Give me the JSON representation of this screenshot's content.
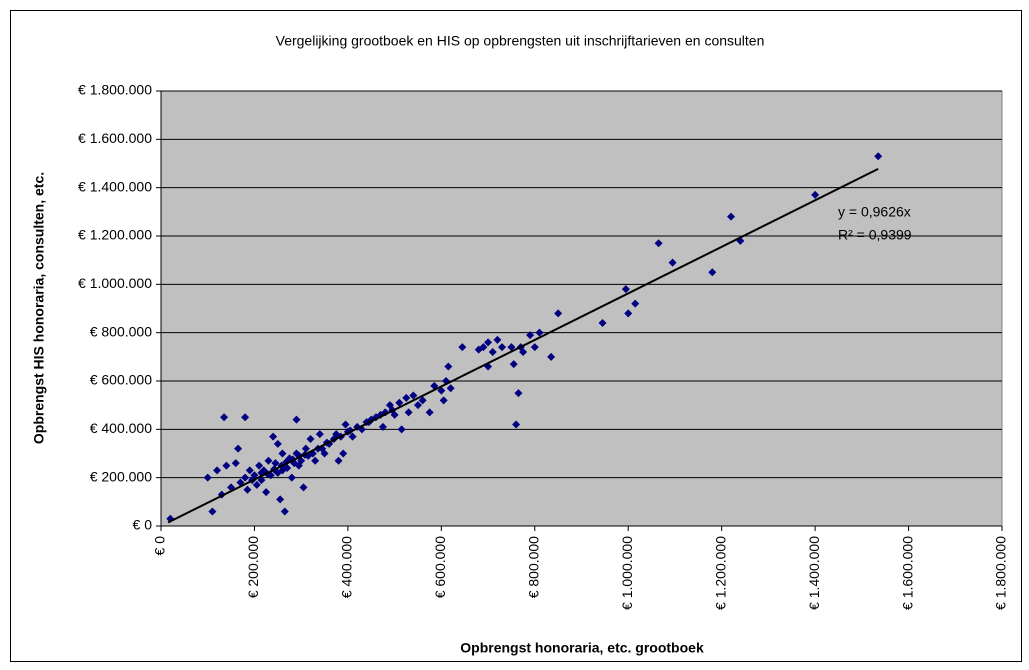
{
  "chart_data": {
    "type": "scatter",
    "title": "Vergelijking grootboek en HIS op opbrengsten uit inschrijftarieven en consulten",
    "x_label": "Opbrengst honoraria, etc. grootboek",
    "y_label": "Opbrengst HIS honoraria, consulten, etc.",
    "x": [
      20000,
      100000,
      110000,
      120000,
      130000,
      135000,
      140000,
      150000,
      160000,
      165000,
      170000,
      180000,
      180000,
      185000,
      190000,
      200000,
      205000,
      210000,
      215000,
      220000,
      225000,
      230000,
      235000,
      240000,
      245000,
      250000,
      250000,
      255000,
      260000,
      260000,
      265000,
      270000,
      275000,
      280000,
      285000,
      290000,
      290000,
      295000,
      300000,
      305000,
      310000,
      315000,
      320000,
      325000,
      330000,
      340000,
      345000,
      350000,
      360000,
      370000,
      375000,
      380000,
      390000,
      395000,
      400000,
      410000,
      420000,
      430000,
      440000,
      450000,
      460000,
      470000,
      475000,
      480000,
      490000,
      495000,
      500000,
      510000,
      515000,
      525000,
      530000,
      540000,
      550000,
      560000,
      575000,
      585000,
      600000,
      605000,
      610000,
      615000,
      620000,
      645000,
      680000,
      690000,
      700000,
      700000,
      710000,
      720000,
      730000,
      750000,
      755000,
      760000,
      765000,
      770000,
      775000,
      790000,
      800000,
      810000,
      835000,
      850000,
      945000,
      995000,
      1000000,
      1015000,
      1065000,
      1095000,
      1180000,
      1220000,
      1240000,
      1400000,
      1535000,
      195000,
      215000,
      228000,
      242000,
      258000,
      268000,
      282000,
      296000,
      308000,
      336000,
      355000,
      385000,
      405000,
      445000
    ],
    "series": [
      {
        "name": "Opbrengst HIS",
        "color": "#000080",
        "values": [
          30000,
          200000,
          60000,
          230000,
          130000,
          450000,
          250000,
          160000,
          260000,
          320000,
          180000,
          450000,
          200000,
          150000,
          230000,
          210000,
          170000,
          250000,
          190000,
          230000,
          140000,
          270000,
          210000,
          370000,
          260000,
          340000,
          220000,
          110000,
          300000,
          230000,
          60000,
          240000,
          280000,
          200000,
          260000,
          440000,
          300000,
          250000,
          270000,
          160000,
          320000,
          290000,
          360000,
          300000,
          270000,
          380000,
          320000,
          300000,
          340000,
          360000,
          380000,
          270000,
          300000,
          420000,
          390000,
          370000,
          410000,
          400000,
          430000,
          440000,
          450000,
          460000,
          410000,
          470000,
          500000,
          480000,
          460000,
          510000,
          400000,
          530000,
          470000,
          540000,
          500000,
          520000,
          470000,
          580000,
          560000,
          520000,
          600000,
          660000,
          570000,
          740000,
          730000,
          740000,
          660000,
          760000,
          720000,
          770000,
          740000,
          740000,
          670000,
          420000,
          550000,
          740000,
          720000,
          790000,
          740000,
          800000,
          700000,
          880000,
          840000,
          980000,
          880000,
          920000,
          1170000,
          1090000,
          1050000,
          1280000,
          1180000,
          1370000,
          1530000,
          190000,
          220000,
          215000,
          235000,
          250000,
          265000,
          275000,
          290000,
          295000,
          320000,
          345000,
          370000,
          395000,
          430000
        ]
      }
    ],
    "trendline": {
      "slope": 0.9626,
      "x": [
        15000,
        1535000
      ],
      "label": "y = 0,9626x",
      "r2_label": "R² = 0,9399"
    },
    "xlim": [
      0,
      1800000
    ],
    "ylim": [
      0,
      1800000
    ],
    "xticks": [
      {
        "value": 0,
        "label": "€ 0"
      },
      {
        "value": 200000,
        "label": "€ 200.000"
      },
      {
        "value": 400000,
        "label": "€ 400.000"
      },
      {
        "value": 600000,
        "label": "€ 600.000"
      },
      {
        "value": 800000,
        "label": "€ 800.000"
      },
      {
        "value": 1000000,
        "label": "€ 1.000.000"
      },
      {
        "value": 1200000,
        "label": "€ 1.200.000"
      },
      {
        "value": 1400000,
        "label": "€ 1.400.000"
      },
      {
        "value": 1600000,
        "label": "€ 1.600.000"
      },
      {
        "value": 1800000,
        "label": "€ 1.800.000"
      }
    ],
    "yticks": [
      {
        "value": 0,
        "label": "€ 0"
      },
      {
        "value": 200000,
        "label": "€ 200.000"
      },
      {
        "value": 400000,
        "label": "€ 400.000"
      },
      {
        "value": 600000,
        "label": "€ 600.000"
      },
      {
        "value": 800000,
        "label": "€ 800.000"
      },
      {
        "value": 1000000,
        "label": "€ 1.000.000"
      },
      {
        "value": 1200000,
        "label": "€ 1.200.000"
      },
      {
        "value": 1400000,
        "label": "€ 1.400.000"
      },
      {
        "value": 1600000,
        "label": "€ 1.600.000"
      },
      {
        "value": 1800000,
        "label": "€ 1.800.000"
      }
    ],
    "grid": true,
    "plot_background": "#c0c0c0"
  }
}
